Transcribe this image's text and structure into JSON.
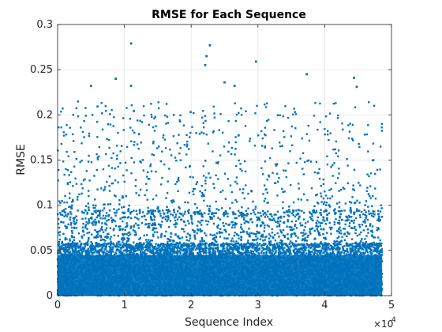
{
  "chart_data": {
    "type": "scatter",
    "title": "RMSE for Each Sequence",
    "xlabel": "Sequence Index",
    "ylabel": "RMSE",
    "xlim": [
      0,
      50000
    ],
    "ylim": [
      0,
      0.3
    ],
    "x_ticks": [
      0,
      10000,
      20000,
      30000,
      40000,
      50000
    ],
    "x_tick_labels": [
      "0",
      "1",
      "2",
      "3",
      "4",
      "5"
    ],
    "x_exponent_label": "×10",
    "x_exponent_power": "4",
    "y_ticks": [
      0,
      0.05,
      0.1,
      0.15,
      0.2,
      0.25,
      0.3
    ],
    "y_tick_labels": [
      "0",
      "0.05",
      "0.1",
      "0.15",
      "0.2",
      "0.25",
      "0.3"
    ],
    "grid": true,
    "marker_color": "#0072BD",
    "n_points": 48600,
    "series": [
      {
        "x_range": [
          0,
          48600
        ],
        "note_distribution": "dense band 0–0.06, sparse up to ~0.2",
        "notable_points": [
          {
            "x": 11000,
            "y": 0.279
          },
          {
            "x": 22800,
            "y": 0.277
          },
          {
            "x": 22300,
            "y": 0.265
          },
          {
            "x": 22100,
            "y": 0.255
          },
          {
            "x": 29700,
            "y": 0.259
          },
          {
            "x": 37300,
            "y": 0.245
          },
          {
            "x": 44400,
            "y": 0.241
          },
          {
            "x": 8700,
            "y": 0.24
          },
          {
            "x": 5000,
            "y": 0.232
          },
          {
            "x": 11000,
            "y": 0.232
          },
          {
            "x": 25000,
            "y": 0.236
          },
          {
            "x": 26500,
            "y": 0.232
          },
          {
            "x": 44800,
            "y": 0.231
          }
        ]
      }
    ]
  }
}
